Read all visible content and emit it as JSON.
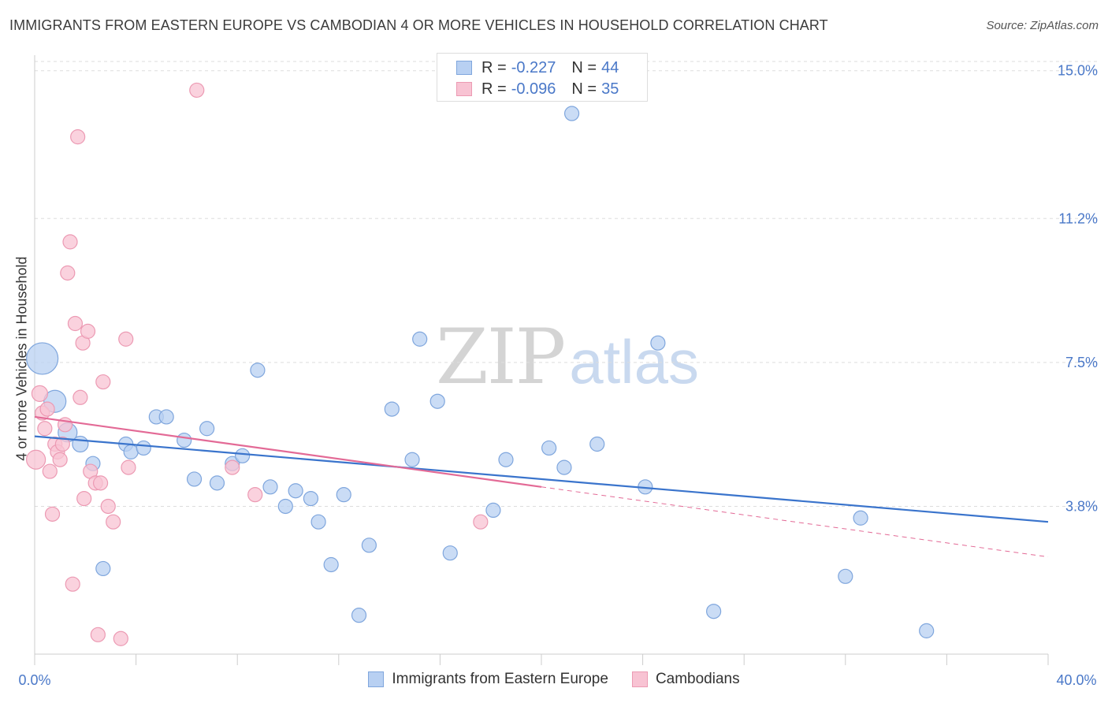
{
  "header": {
    "title": "IMMIGRANTS FROM EASTERN EUROPE VS CAMBODIAN 4 OR MORE VEHICLES IN HOUSEHOLD CORRELATION CHART",
    "source": "Source: ZipAtlas.com"
  },
  "watermark": {
    "zip": "ZIP",
    "atlas": "atlas"
  },
  "legend": {
    "r_label": "R =",
    "n_label": "N =",
    "series": [
      {
        "r": "-0.227",
        "n": "44"
      },
      {
        "r": "-0.096",
        "n": "35"
      }
    ]
  },
  "bottom_legend": {
    "items": [
      "Immigrants from Eastern Europe",
      "Cambodians"
    ]
  },
  "colors": {
    "blue_fill": "#b8d0f2",
    "blue_stroke": "#7fa6dd",
    "blue_line": "#3a74cc",
    "pink_fill": "#f8c3d3",
    "pink_stroke": "#ec9ab3",
    "pink_line": "#e36a96",
    "tick_label": "#4a78c8",
    "grid": "#dddddd"
  },
  "chart_data": {
    "type": "scatter",
    "title": "IMMIGRANTS FROM EASTERN EUROPE VS CAMBODIAN 4 OR MORE VEHICLES IN HOUSEHOLD CORRELATION CHART",
    "ylabel": "4 or more Vehicles in Household",
    "xlabel": "",
    "xlim": [
      0,
      40
    ],
    "ylim": [
      0,
      15.4
    ],
    "x_tick_labels": [
      "0.0%",
      "40.0%"
    ],
    "y_ticks": [
      3.8,
      7.5,
      11.2,
      15.0
    ],
    "y_tick_labels": [
      "3.8%",
      "7.5%",
      "11.2%",
      "15.0%"
    ],
    "grid": "horizontal dashed",
    "legend_position": "top-center",
    "series": [
      {
        "name": "Immigrants from Eastern Europe",
        "color": "#b8d0f2",
        "points": [
          [
            0.3,
            7.6,
            20
          ],
          [
            0.8,
            6.5,
            14
          ],
          [
            1.3,
            5.7,
            12
          ],
          [
            1.8,
            5.4,
            10
          ],
          [
            2.3,
            4.9,
            9
          ],
          [
            2.7,
            2.2,
            9
          ],
          [
            3.6,
            5.4,
            9
          ],
          [
            3.8,
            5.2,
            9
          ],
          [
            4.3,
            5.3,
            9
          ],
          [
            4.8,
            6.1,
            9
          ],
          [
            5.2,
            6.1,
            9
          ],
          [
            5.9,
            5.5,
            9
          ],
          [
            6.3,
            4.5,
            9
          ],
          [
            6.8,
            5.8,
            9
          ],
          [
            7.2,
            4.4,
            9
          ],
          [
            7.8,
            4.9,
            9
          ],
          [
            8.2,
            5.1,
            9
          ],
          [
            8.8,
            7.3,
            9
          ],
          [
            9.3,
            4.3,
            9
          ],
          [
            9.9,
            3.8,
            9
          ],
          [
            10.3,
            4.2,
            9
          ],
          [
            10.9,
            4.0,
            9
          ],
          [
            11.2,
            3.4,
            9
          ],
          [
            11.7,
            2.3,
            9
          ],
          [
            12.2,
            4.1,
            9
          ],
          [
            12.8,
            1.0,
            9
          ],
          [
            13.2,
            2.8,
            9
          ],
          [
            14.1,
            6.3,
            9
          ],
          [
            14.9,
            5.0,
            9
          ],
          [
            15.2,
            8.1,
            9
          ],
          [
            15.9,
            6.5,
            9
          ],
          [
            16.4,
            2.6,
            9
          ],
          [
            18.1,
            3.7,
            9
          ],
          [
            18.6,
            5.0,
            9
          ],
          [
            20.3,
            5.3,
            9
          ],
          [
            20.9,
            4.8,
            9
          ],
          [
            21.2,
            13.9,
            9
          ],
          [
            22.2,
            5.4,
            9
          ],
          [
            24.1,
            4.3,
            9
          ],
          [
            24.6,
            8.0,
            9
          ],
          [
            26.8,
            1.1,
            9
          ],
          [
            32.0,
            2.0,
            9
          ],
          [
            32.6,
            3.5,
            9
          ],
          [
            35.2,
            0.6,
            9
          ]
        ]
      },
      {
        "name": "Cambodians",
        "color": "#f8c3d3",
        "points": [
          [
            0.05,
            5.0,
            12
          ],
          [
            0.2,
            6.7,
            10
          ],
          [
            0.3,
            6.2,
            9
          ],
          [
            0.4,
            5.8,
            9
          ],
          [
            0.5,
            6.3,
            9
          ],
          [
            0.6,
            4.7,
            9
          ],
          [
            0.7,
            3.6,
            9
          ],
          [
            0.8,
            5.4,
            9
          ],
          [
            0.9,
            5.2,
            9
          ],
          [
            1.0,
            5.0,
            9
          ],
          [
            1.1,
            5.4,
            9
          ],
          [
            1.2,
            5.9,
            9
          ],
          [
            1.3,
            9.8,
            9
          ],
          [
            1.4,
            10.6,
            9
          ],
          [
            1.5,
            1.8,
            9
          ],
          [
            1.6,
            8.5,
            9
          ],
          [
            1.7,
            13.3,
            9
          ],
          [
            1.8,
            6.6,
            9
          ],
          [
            1.9,
            8.0,
            9
          ],
          [
            1.95,
            4.0,
            9
          ],
          [
            2.1,
            8.3,
            9
          ],
          [
            2.2,
            4.7,
            9
          ],
          [
            2.4,
            4.4,
            9
          ],
          [
            2.5,
            0.5,
            9
          ],
          [
            2.6,
            4.4,
            9
          ],
          [
            2.7,
            7.0,
            9
          ],
          [
            2.9,
            3.8,
            9
          ],
          [
            3.1,
            3.4,
            9
          ],
          [
            3.4,
            0.4,
            9
          ],
          [
            3.6,
            8.1,
            9
          ],
          [
            3.7,
            4.8,
            9
          ],
          [
            6.4,
            14.5,
            9
          ],
          [
            7.8,
            4.8,
            9
          ],
          [
            8.7,
            4.1,
            9
          ],
          [
            17.6,
            3.4,
            9
          ]
        ]
      }
    ],
    "trend_lines": [
      {
        "series": "Immigrants from Eastern Europe",
        "x": [
          0,
          40
        ],
        "y": [
          5.6,
          3.4
        ],
        "style": "solid"
      },
      {
        "series": "Cambodians",
        "x": [
          0,
          20
        ],
        "y": [
          6.1,
          4.3
        ],
        "style": "solid"
      },
      {
        "series": "Cambodians",
        "x": [
          20,
          40
        ],
        "y": [
          4.3,
          2.5
        ],
        "style": "dashed"
      }
    ]
  }
}
